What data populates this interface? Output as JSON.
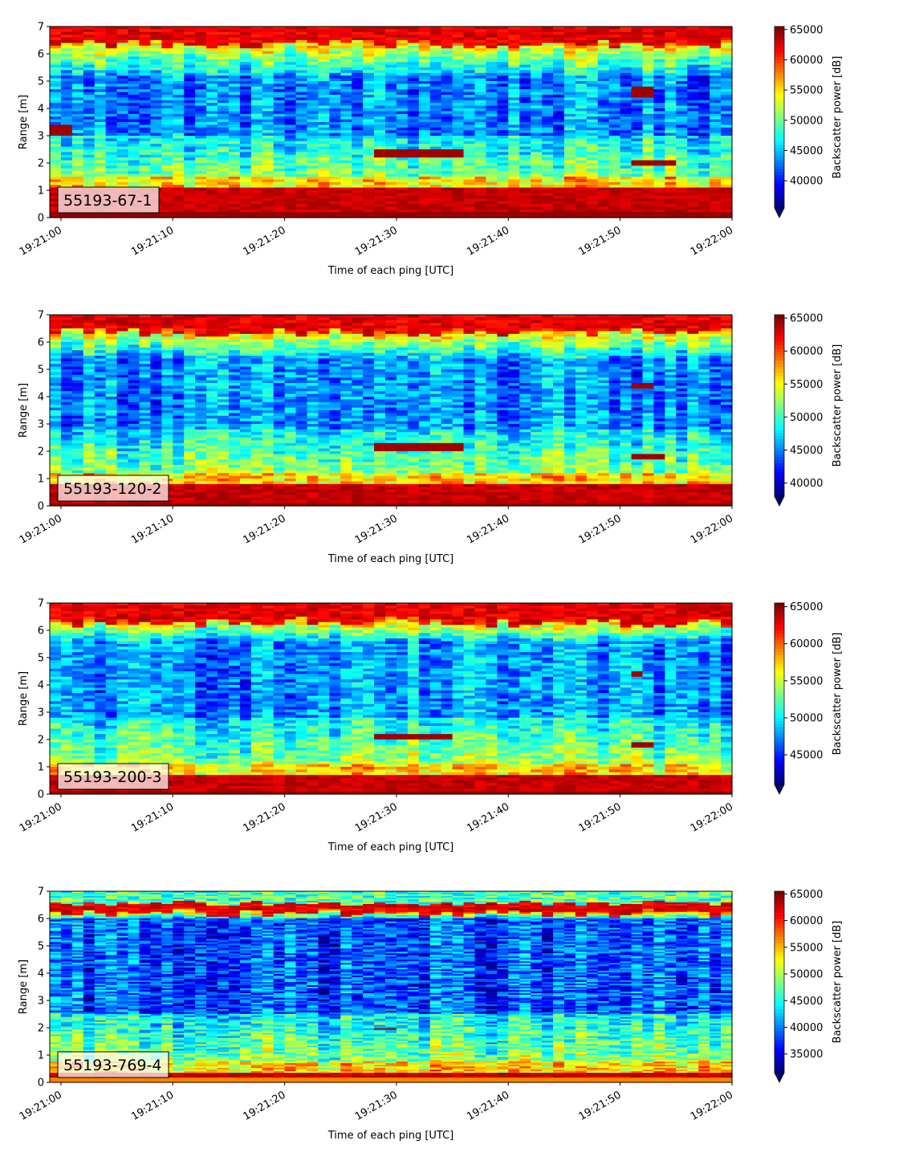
{
  "chart_data": [
    {
      "type": "heatmap",
      "label_box": "55193-67-1",
      "xlabel": "Time of each ping [UTC]",
      "ylabel": "Range [m]",
      "xlim": [
        "19:20:59",
        "19:22:00"
      ],
      "ylim": [
        0,
        7
      ],
      "x_ticks": [
        "19:21:00",
        "19:21:10",
        "19:21:20",
        "19:21:30",
        "19:21:40",
        "19:21:50",
        "19:22:00"
      ],
      "y_ticks": [
        0,
        1,
        2,
        3,
        4,
        5,
        6,
        7
      ],
      "colorbar": {
        "label": "Backscatter power [dB]",
        "colormap": "jet",
        "vmin": 35500,
        "vmax": 65500,
        "ticks": [
          40000,
          45000,
          50000,
          55000,
          60000,
          65000
        ]
      },
      "features": {
        "bottom_band": [
          0.2,
          1.1
        ],
        "surface_band": [
          6.35,
          7.0
        ],
        "blue_core": [
          3.0,
          5.2
        ],
        "echo_tracks": [
          {
            "t": [
              "19:21:28",
              "19:21:36"
            ],
            "range": [
              2.2,
              2.5
            ]
          },
          {
            "t": [
              "19:21:51",
              "19:21:55"
            ],
            "range": [
              1.9,
              2.15
            ]
          },
          {
            "t": [
              "19:21:51",
              "19:21:53"
            ],
            "range": [
              4.4,
              4.8
            ]
          },
          {
            "t": [
              "19:20:59",
              "19:21:01"
            ],
            "range": [
              3.0,
              3.4
            ]
          }
        ]
      }
    },
    {
      "type": "heatmap",
      "label_box": "55193-120-2",
      "xlabel": "Time of each ping [UTC]",
      "ylabel": "Range [m]",
      "xlim": [
        "19:20:59",
        "19:22:00"
      ],
      "ylim": [
        0,
        7
      ],
      "x_ticks": [
        "19:21:00",
        "19:21:10",
        "19:21:20",
        "19:21:30",
        "19:21:40",
        "19:21:50",
        "19:22:00"
      ],
      "y_ticks": [
        0,
        1,
        2,
        3,
        4,
        5,
        6,
        7
      ],
      "colorbar": {
        "label": "Backscatter power [dB]",
        "colormap": "jet",
        "vmin": 38000,
        "vmax": 65500,
        "ticks": [
          40000,
          45000,
          50000,
          55000,
          60000,
          65000
        ]
      },
      "features": {
        "bottom_band": [
          0.1,
          0.8
        ],
        "surface_band": [
          6.35,
          7.0
        ],
        "blue_core": [
          2.8,
          5.4
        ],
        "echo_tracks": [
          {
            "t": [
              "19:21:28",
              "19:21:36"
            ],
            "range": [
              2.0,
              2.3
            ]
          },
          {
            "t": [
              "19:21:51",
              "19:21:54"
            ],
            "range": [
              1.7,
              1.9
            ]
          },
          {
            "t": [
              "19:21:51",
              "19:21:53"
            ],
            "range": [
              4.3,
              4.45
            ]
          }
        ]
      }
    },
    {
      "type": "heatmap",
      "label_box": "55193-200-3",
      "xlabel": "Time of each ping [UTC]",
      "ylabel": "Range [m]",
      "xlim": [
        "19:20:59",
        "19:22:00"
      ],
      "ylim": [
        0,
        7
      ],
      "x_ticks": [
        "19:21:00",
        "19:21:10",
        "19:21:20",
        "19:21:30",
        "19:21:40",
        "19:21:50",
        "19:22:00"
      ],
      "y_ticks": [
        0,
        1,
        2,
        3,
        4,
        5,
        6,
        7
      ],
      "colorbar": {
        "label": "Backscatter power [dB]",
        "colormap": "jet",
        "vmin": 41000,
        "vmax": 65500,
        "ticks": [
          45000,
          50000,
          55000,
          60000,
          65000
        ]
      },
      "features": {
        "bottom_band": [
          0.1,
          0.75
        ],
        "surface_band": [
          6.3,
          6.9
        ],
        "blue_core": [
          2.8,
          5.6
        ],
        "echo_tracks": [
          {
            "t": [
              "19:21:28",
              "19:21:35"
            ],
            "range": [
              2.0,
              2.2
            ]
          },
          {
            "t": [
              "19:21:51",
              "19:21:53"
            ],
            "range": [
              1.7,
              1.85
            ]
          },
          {
            "t": [
              "19:21:51",
              "19:21:52"
            ],
            "range": [
              4.3,
              4.45
            ]
          }
        ]
      }
    },
    {
      "type": "heatmap",
      "label_box": "55193-769-4",
      "xlabel": "Time of each ping [UTC]",
      "ylabel": "Range [m]",
      "xlim": [
        "19:20:59",
        "19:22:00"
      ],
      "ylim": [
        0,
        7
      ],
      "x_ticks": [
        "19:21:00",
        "19:21:10",
        "19:21:20",
        "19:21:30",
        "19:21:40",
        "19:21:50",
        "19:22:00"
      ],
      "y_ticks": [
        0,
        1,
        2,
        3,
        4,
        5,
        6,
        7
      ],
      "colorbar": {
        "label": "Backscatter power [dB]",
        "colormap": "jet",
        "vmin": 31500,
        "vmax": 65500,
        "ticks": [
          35000,
          40000,
          45000,
          50000,
          55000,
          60000,
          65000
        ]
      },
      "features": {
        "bottom_band": [
          0.15,
          0.35
        ],
        "surface_band": [
          6.2,
          6.55
        ],
        "blue_core": [
          2.5,
          6.0
        ],
        "echo_tracks": [
          {
            "t": [
              "19:21:28",
              "19:21:30"
            ],
            "range": [
              1.9,
              2.0
            ]
          }
        ]
      }
    }
  ]
}
